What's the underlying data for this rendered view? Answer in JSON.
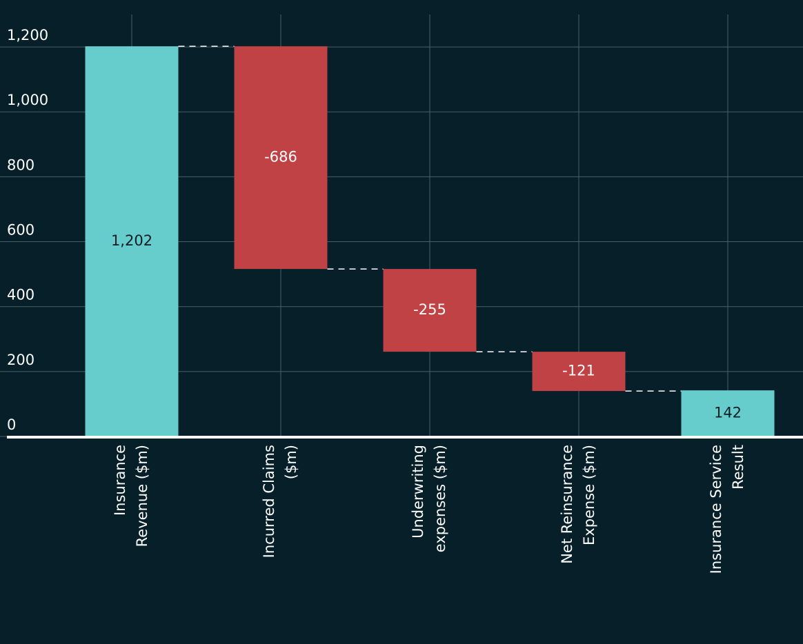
{
  "chart_data": {
    "type": "waterfall",
    "categories": [
      [
        "Insurance",
        "Revenue ($m)"
      ],
      [
        "Incurred Claims",
        "($m)"
      ],
      [
        "Underwriting",
        "expenses ($m)"
      ],
      [
        "Net Reinsurance",
        "Expense ($m)"
      ],
      [
        "Insurance Service",
        "Result"
      ]
    ],
    "values": [
      1202,
      -686,
      -255,
      -121,
      142
    ],
    "value_labels": [
      "1,202",
      "-686",
      "-255",
      "-121",
      "142"
    ],
    "measures": [
      "absolute",
      "relative",
      "relative",
      "relative",
      "total"
    ],
    "increase_color": "#66cdcc",
    "decrease_color": "#c04244",
    "ylim": [
      0,
      1300
    ],
    "yticks": [
      0,
      200,
      400,
      600,
      800,
      {
        "value": 1000,
        "label": "1,000"
      },
      {
        "value": 1200,
        "label": "1,200"
      }
    ],
    "grid": true
  }
}
